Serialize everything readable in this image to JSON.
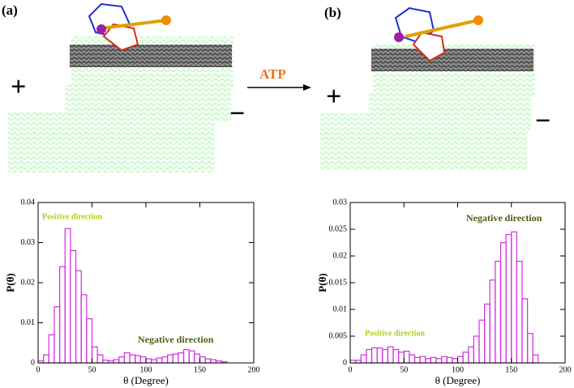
{
  "figure": {
    "panel_labels": [
      "(a)",
      "(b)"
    ],
    "arrow_label": "ATP",
    "plus": "+",
    "minus": "−"
  },
  "chart_data": [
    {
      "type": "histogram",
      "xlabel": "θ (Degree)",
      "ylabel": "P(θ)",
      "color": "#d22ee0",
      "bins": [
        0,
        5,
        10,
        15,
        20,
        25,
        30,
        35,
        40,
        45,
        50,
        55,
        60,
        65,
        70,
        75,
        80,
        85,
        90,
        95,
        100,
        105,
        110,
        115,
        120,
        125,
        130,
        135,
        140,
        145,
        150,
        155,
        160,
        165,
        170,
        175
      ],
      "values": [
        0.0005,
        0.002,
        0.007,
        0.014,
        0.024,
        0.0335,
        0.028,
        0.023,
        0.017,
        0.011,
        0.004,
        0.002,
        0.0007,
        0.0005,
        0.0008,
        0.0015,
        0.0025,
        0.002,
        0.0018,
        0.0015,
        0.001,
        0.0008,
        0.0012,
        0.0015,
        0.002,
        0.0022,
        0.0025,
        0.0033,
        0.003,
        0.0022,
        0.0015,
        0.001,
        0.0008,
        0.0005,
        0.0003
      ],
      "xlim": [
        0,
        200
      ],
      "xticks": [
        0,
        50,
        100,
        150,
        200
      ],
      "ylim": [
        0,
        0.04
      ],
      "yticks": [
        0,
        0.01,
        0.02,
        0.03,
        0.04
      ],
      "annotations": [
        {
          "text": "Positive direction",
          "color": "#b3cc1a"
        },
        {
          "text": "Negative direction",
          "color": "#4f5c14"
        }
      ]
    },
    {
      "type": "histogram",
      "xlabel": "θ (Degree)",
      "ylabel": "P(θ)",
      "color": "#d22ee0",
      "bins": [
        0,
        5,
        10,
        15,
        20,
        25,
        30,
        35,
        40,
        45,
        50,
        55,
        60,
        65,
        70,
        75,
        80,
        85,
        90,
        95,
        100,
        105,
        110,
        115,
        120,
        125,
        130,
        135,
        140,
        145,
        150,
        155,
        160,
        165,
        170,
        175
      ],
      "values": [
        0.0005,
        0.0005,
        0.0015,
        0.0025,
        0.0028,
        0.0028,
        0.0025,
        0.003,
        0.0025,
        0.002,
        0.0022,
        0.0015,
        0.001,
        0.0012,
        0.0008,
        0.001,
        0.0008,
        0.0012,
        0.001,
        0.0008,
        0.0012,
        0.002,
        0.003,
        0.005,
        0.008,
        0.011,
        0.0155,
        0.019,
        0.0225,
        0.024,
        0.0245,
        0.019,
        0.012,
        0.0055,
        0.0015
      ],
      "xlim": [
        0,
        200
      ],
      "xticks": [
        0,
        50,
        100,
        150,
        200
      ],
      "ylim": [
        0,
        0.03
      ],
      "yticks": [
        0,
        0.005,
        0.01,
        0.015,
        0.02,
        0.025,
        0.03
      ],
      "annotations": [
        {
          "text": "Negative direction",
          "color": "#4f5c14"
        },
        {
          "text": "Positive direction",
          "color": "#b3cc1a"
        }
      ]
    }
  ]
}
